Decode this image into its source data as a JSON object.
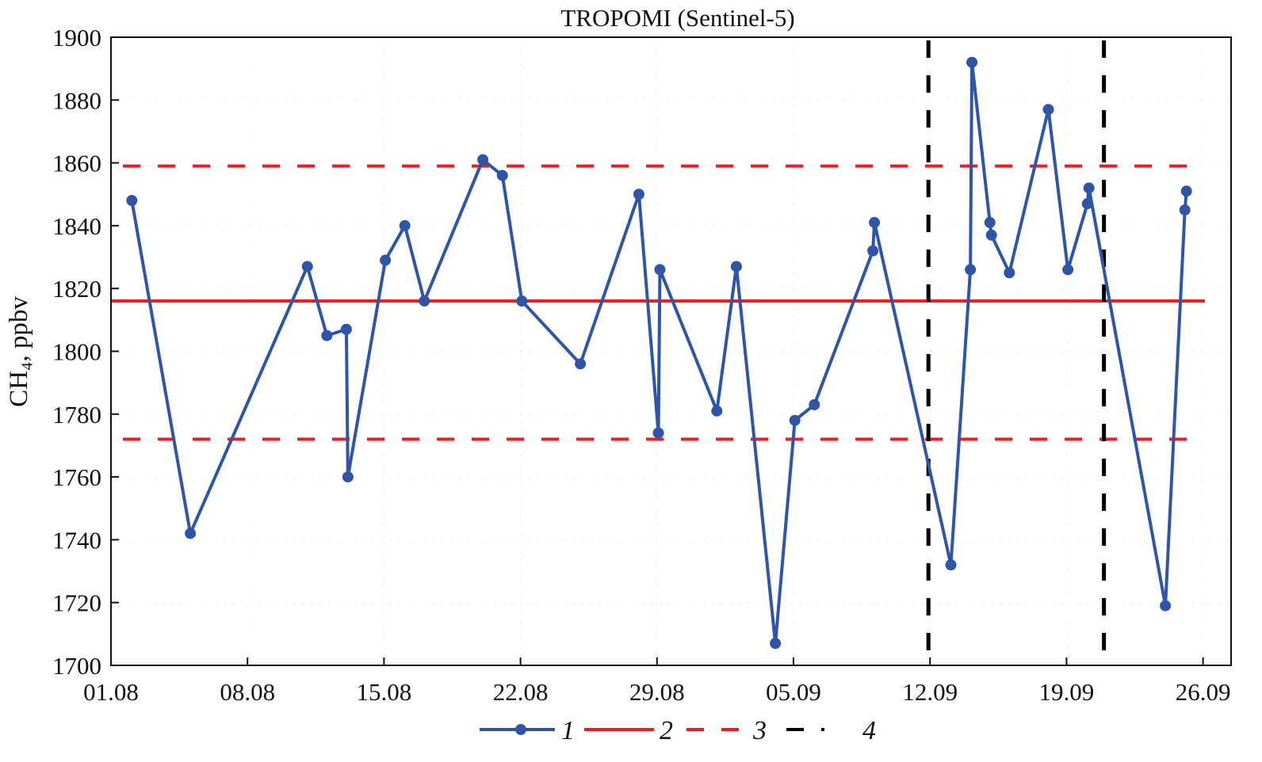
{
  "chart_data": {
    "type": "line",
    "title": "TROPOMI (Sentinel-5)",
    "xlabel": "",
    "ylabel": "CH₄, ppbv",
    "ylim": [
      1700,
      1900
    ],
    "xlim": [
      "01.08",
      "27.09"
    ],
    "yticks": [
      "1700",
      "1720",
      "1740",
      "1760",
      "1780",
      "1800",
      "1820",
      "1840",
      "1860",
      "1880",
      "1900"
    ],
    "xticks": [
      "01.08",
      "08.08",
      "15.08",
      "22.08",
      "29.08",
      "05.09",
      "12.09",
      "19.09",
      "26.09"
    ],
    "grid": "faint dotted",
    "legend_placement": "bottom",
    "colors": {
      "series": "#2e55a8",
      "mean": "#ee1c25",
      "bounds": "#ee1c25",
      "markers": "#000000"
    },
    "series": [
      {
        "name": "1",
        "x": [
          "02.08",
          "05.08",
          "11.08",
          "12.08",
          "13.08",
          "13.08",
          "15.08",
          "16.08",
          "17.08",
          "20.08",
          "21.08",
          "22.08",
          "25.08",
          "28.08",
          "29.08",
          "29.08",
          "01.09",
          "02.09",
          "04.09",
          "05.09",
          "06.09",
          "09.09",
          "09.09",
          "13.09",
          "14.09",
          "14.09",
          "15.09",
          "15.09",
          "16.09",
          "18.09",
          "19.09",
          "20.09",
          "20.09",
          "24.09",
          "25.09",
          "25.09"
        ],
        "y": [
          1848,
          1742,
          1827,
          1805,
          1807,
          1760,
          1829,
          1840,
          1816,
          1861,
          1856,
          1816,
          1796,
          1850,
          1774,
          1826,
          1781,
          1827,
          1707,
          1778,
          1783,
          1832,
          1841,
          1732,
          1826,
          1892,
          1841,
          1837,
          1825,
          1877,
          1826,
          1847,
          1852,
          1719,
          1845,
          1851
        ]
      }
    ],
    "reference_lines": [
      {
        "name": "2",
        "type": "horizontal",
        "value": 1816,
        "style": "solid",
        "color": "#ee1c25"
      },
      {
        "name": "3",
        "type": "horizontal",
        "value": 1859,
        "style": "dashed",
        "color": "#ee1c25"
      },
      {
        "name": "3",
        "type": "horizontal",
        "value": 1772,
        "style": "dashed",
        "color": "#ee1c25"
      },
      {
        "name": "4",
        "type": "vertical",
        "value": "12.09",
        "style": "dashed",
        "color": "#000000"
      },
      {
        "name": "4",
        "type": "vertical",
        "value": "21.09",
        "style": "dashed",
        "color": "#000000"
      }
    ],
    "legend": [
      "1",
      "2",
      "3",
      "4"
    ]
  }
}
